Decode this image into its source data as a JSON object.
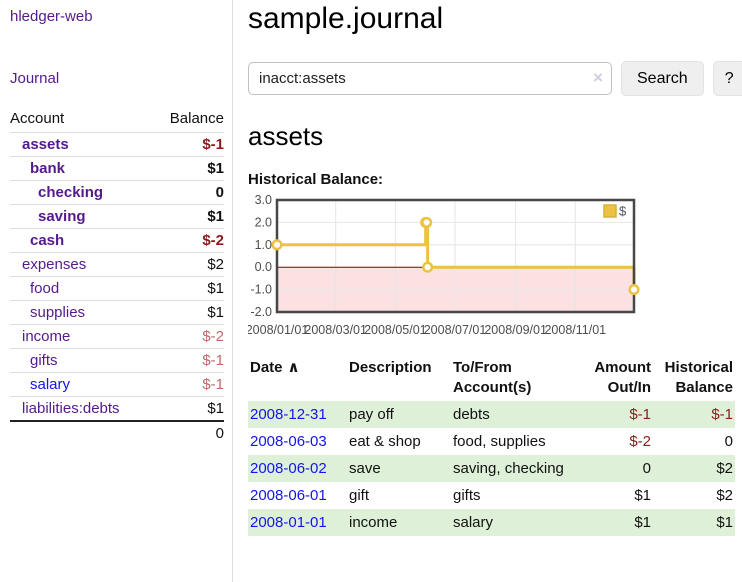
{
  "app": {
    "title": "hledger-web"
  },
  "colors": {
    "accent_purple": "#551a8b",
    "link_blue": "#1414ee",
    "negative_strong": "#8b1c1c",
    "negative_soft": "#c06a6a",
    "stripe_green": "#dff0d8",
    "series_yellow": "#edc240",
    "negative_region_pink": "#fbe1e1",
    "zero_line_red": "#7f0000",
    "grid_gray": "#e6e6e6",
    "chart_border": "#474747",
    "axis_text": "#4d4d4d"
  },
  "sidebar": {
    "nav_journal": "Journal",
    "accounts_header": {
      "account": "Account",
      "balance": "Balance"
    },
    "accounts": [
      {
        "name": "assets",
        "depth": 1,
        "balance": "$-1",
        "emphasis": true,
        "balance_tone": "negative-strong",
        "link_tone": "purple"
      },
      {
        "name": "bank",
        "depth": 2,
        "balance": "$1",
        "emphasis": true,
        "balance_tone": "normal",
        "link_tone": "purple"
      },
      {
        "name": "checking",
        "depth": 3,
        "balance": "0",
        "emphasis": true,
        "balance_tone": "normal",
        "link_tone": "purple"
      },
      {
        "name": "saving",
        "depth": 3,
        "balance": "$1",
        "emphasis": true,
        "balance_tone": "normal",
        "link_tone": "purple"
      },
      {
        "name": "cash",
        "depth": 2,
        "balance": "$-2",
        "emphasis": true,
        "balance_tone": "negative-strong",
        "link_tone": "purple"
      },
      {
        "name": "expenses",
        "depth": 1,
        "balance": "$2",
        "emphasis": false,
        "balance_tone": "normal",
        "link_tone": "purple"
      },
      {
        "name": "food",
        "depth": 2,
        "balance": "$1",
        "emphasis": false,
        "balance_tone": "normal",
        "link_tone": "purple"
      },
      {
        "name": "supplies",
        "depth": 2,
        "balance": "$1",
        "emphasis": false,
        "balance_tone": "normal",
        "link_tone": "purple"
      },
      {
        "name": "income",
        "depth": 1,
        "balance": "$-2",
        "emphasis": false,
        "balance_tone": "negative-soft",
        "link_tone": "purple"
      },
      {
        "name": "gifts",
        "depth": 2,
        "balance": "$-1",
        "emphasis": false,
        "balance_tone": "negative-soft",
        "link_tone": "purple"
      },
      {
        "name": "salary",
        "depth": 2,
        "balance": "$-1",
        "emphasis": false,
        "balance_tone": "negative-soft",
        "link_tone": "blue"
      },
      {
        "name": "liabilities:debts",
        "depth": 1,
        "balance": "$1",
        "emphasis": false,
        "balance_tone": "normal",
        "link_tone": "purple"
      }
    ],
    "total": "0"
  },
  "main": {
    "title": "sample.journal",
    "search": {
      "value": "inacct:assets",
      "clear_icon": "×",
      "button_label": "Search",
      "help_label": "?"
    },
    "account_heading": "assets"
  },
  "chart_data": {
    "type": "line",
    "title": "Historical Balance:",
    "step": true,
    "legend_position": "top-right",
    "series": [
      {
        "name": "$",
        "x": [
          "2008-01-01",
          "2008-06-01",
          "2008-06-02",
          "2008-06-03",
          "2008-12-31"
        ],
        "y": [
          1,
          2,
          2,
          0,
          -1
        ]
      }
    ],
    "xlim": [
      "2008-01-01",
      "2008-12-31"
    ],
    "ylim": [
      -2,
      3
    ],
    "ytick_labels": [
      "3.0",
      "2.0",
      "1.0",
      "0.0",
      "-1.0",
      "-2.0"
    ],
    "ytick_values": [
      3,
      2,
      1,
      0,
      -1,
      -2
    ],
    "xtick_labels": [
      "2008/01/01",
      "2008/03/01",
      "2008/05/01",
      "2008/07/01",
      "2008/09/01",
      "2008/11/01"
    ],
    "grid": true,
    "negative_region_shaded": true
  },
  "register": {
    "headers": {
      "date": "Date",
      "sort_icon": "∧",
      "description": "Description",
      "accounts": "To/From Account(s)",
      "amount": "Amount Out/In",
      "balance": "Historical Balance"
    },
    "rows": [
      {
        "date": "2008-12-31",
        "description": "pay off",
        "accounts": "debts",
        "amount": "$-1",
        "amount_tone": "negative",
        "balance": "$-1",
        "balance_tone": "negative",
        "stripe": true
      },
      {
        "date": "2008-06-03",
        "description": "eat & shop",
        "accounts": "food, supplies",
        "amount": "$-2",
        "amount_tone": "negative",
        "balance": "0",
        "balance_tone": "normal",
        "stripe": false
      },
      {
        "date": "2008-06-02",
        "description": "save",
        "accounts": "saving, checking",
        "amount": "0",
        "amount_tone": "normal",
        "balance": "$2",
        "balance_tone": "normal",
        "stripe": true
      },
      {
        "date": "2008-06-01",
        "description": "gift",
        "accounts": "gifts",
        "amount": "$1",
        "amount_tone": "normal",
        "balance": "$2",
        "balance_tone": "normal",
        "stripe": false
      },
      {
        "date": "2008-01-01",
        "description": "income",
        "accounts": "salary",
        "amount": "$1",
        "amount_tone": "normal",
        "balance": "$1",
        "balance_tone": "normal",
        "stripe": true
      }
    ]
  }
}
